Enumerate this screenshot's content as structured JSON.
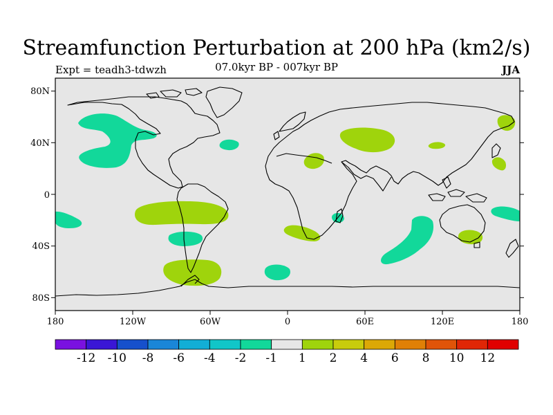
{
  "header": {
    "title": "Streamfunction Perturbation at 200 hPa (km2/s)",
    "left": "Expt = teadh3-tdwzh",
    "center": "07.0kyr BP - 007kyr BP",
    "right": "JJA"
  },
  "chart_data": {
    "type": "heatmap",
    "variable": "Streamfunction Perturbation at 200 hPa",
    "units": "km2/s",
    "season": "JJA",
    "lon_range": [
      -180,
      180
    ],
    "lat_range": [
      -90,
      90
    ],
    "x_ticks": [
      "180",
      "120W",
      "60W",
      "0",
      "60E",
      "120E",
      "180"
    ],
    "y_ticks": [
      "80N",
      "40N",
      "0",
      "40S",
      "80S"
    ],
    "colorbar": {
      "labels": [
        "-12",
        "-10",
        "-8",
        "-6",
        "-4",
        "-2",
        "-1",
        "1",
        "2",
        "4",
        "6",
        "8",
        "10",
        "12"
      ],
      "colors": [
        "#7a11e0",
        "#3a16d6",
        "#1650cc",
        "#1a86d8",
        "#12aed6",
        "#11c6c8",
        "#12d89a",
        "#e6e6e6",
        "#9fd40c",
        "#c8cc0c",
        "#dca806",
        "#e08006",
        "#e05408",
        "#e02606",
        "#e00000"
      ]
    },
    "regions": [
      {
        "class": "-2 to -1",
        "lon": -150,
        "lat": 60
      },
      {
        "class": "-2 to -1",
        "lon": -45,
        "lat": 40
      },
      {
        "class": "-2 to -1",
        "lon": -170,
        "lat": -22
      },
      {
        "class": "-2 to -1",
        "lon": -80,
        "lat": -33
      },
      {
        "class": "-2 to -1",
        "lon": -7,
        "lat": -60
      },
      {
        "class": "-2 to -1",
        "lon": 40,
        "lat": -17
      },
      {
        "class": "-2 to -1",
        "lon": 95,
        "lat": -40
      },
      {
        "class": "-2 to -1",
        "lon": 170,
        "lat": -15
      },
      {
        "class": "1 to 2",
        "lon": 55,
        "lat": 45
      },
      {
        "class": "1 to 2",
        "lon": 20,
        "lat": 27
      },
      {
        "class": "1 to 2",
        "lon": 115,
        "lat": 40
      },
      {
        "class": "1 to 2",
        "lon": 170,
        "lat": 55
      },
      {
        "class": "1 to 2",
        "lon": 165,
        "lat": 25
      },
      {
        "class": "1 to 2",
        "lon": -85,
        "lat": -15
      },
      {
        "class": "1 to 2",
        "lon": 20,
        "lat": -28
      },
      {
        "class": "1 to 2",
        "lon": 143,
        "lat": -32
      },
      {
        "class": "1 to 2",
        "lon": -75,
        "lat": -62
      }
    ]
  }
}
